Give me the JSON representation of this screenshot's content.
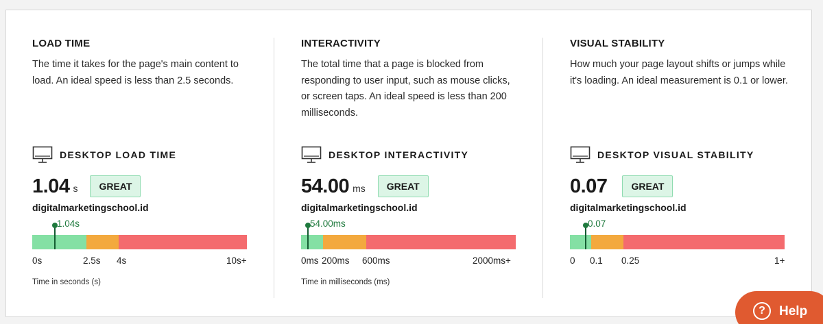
{
  "metrics": [
    {
      "title": "LOAD TIME",
      "description": "The time it takes for the page's main content to load. An ideal speed is less than 2.5 seconds.",
      "device_label": "DESKTOP LOAD TIME",
      "value": "1.04",
      "unit": "s",
      "rating": "GREAT",
      "domain": "digitalmarketingschool.id",
      "marker_label": "1.04s",
      "marker_value": 1.04,
      "ticks": [
        "0s",
        "2.5s",
        "4s",
        "10s+"
      ],
      "axis_note": "Time in seconds (s)"
    },
    {
      "title": "INTERACTIVITY",
      "description": "The total time that a page is blocked from responding to user input, such as mouse clicks, or screen taps. An ideal speed is less than 200 milliseconds.",
      "device_label": "DESKTOP INTERACTIVITY",
      "value": "54.00",
      "unit": "ms",
      "rating": "GREAT",
      "domain": "digitalmarketingschool.id",
      "marker_label": "54.00ms",
      "marker_value": 54,
      "ticks": [
        "0ms",
        "200ms",
        "600ms",
        "2000ms+"
      ],
      "axis_note": "Time in milliseconds (ms)"
    },
    {
      "title": "VISUAL STABILITY",
      "description": "How much your page layout shifts or jumps while it's loading. An ideal measurement is 0.1 or lower.",
      "device_label": "DESKTOP VISUAL STABILITY",
      "value": "0.07",
      "unit": "",
      "rating": "GREAT",
      "domain": "digitalmarketingschool.id",
      "marker_label": "0.07",
      "marker_value": 0.07,
      "ticks": [
        "0",
        "0.1",
        "0.25",
        "1+"
      ],
      "axis_note": ""
    }
  ],
  "help": {
    "label": "Help",
    "icon": "question-circle-icon"
  },
  "colors": {
    "good": "#84e0a4",
    "needs_improvement": "#f3a93e",
    "poor": "#f46b6e",
    "marker": "#1f7a3e",
    "help_bg": "#e05a30"
  }
}
